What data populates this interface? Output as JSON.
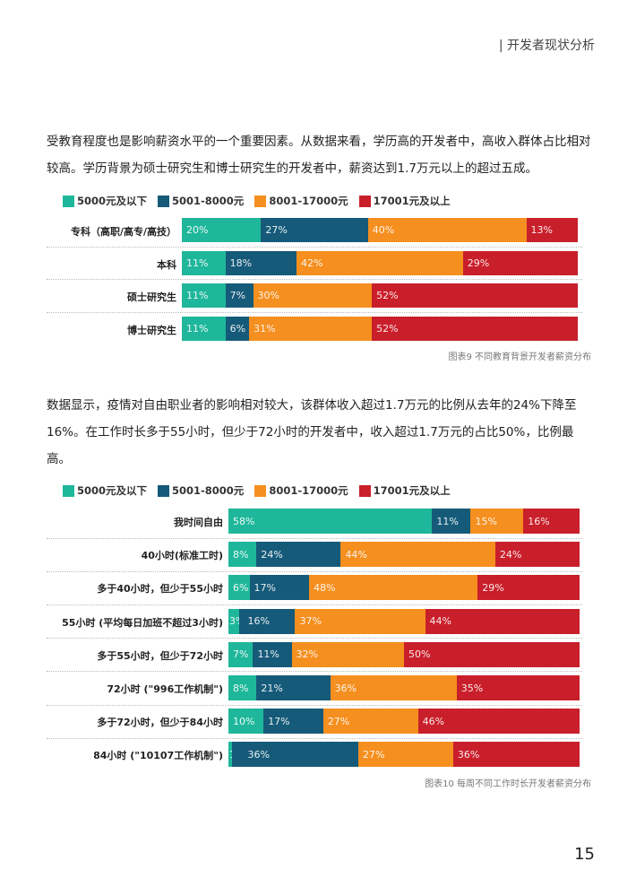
{
  "header": {
    "section": "| 开发者现状分析"
  },
  "paragraph1": "受教育程度也是影响薪资水平的一个重要因素。从数据来看，学历高的开发者中，高收入群体占比相对较高。学历背景为硕士研究生和博士研究生的开发者中，薪资达到1.7万元以上的超过五成。",
  "paragraph2": "数据显示，疫情对自由职业者的影响相对较大，该群体收入超过1.7万元的比例从去年的24%下降至16%。在工作时长多于55小时，但少于72小时的开发者中，收入超过1.7万元的占比50%，比例最高。",
  "page_number": "15",
  "chart_data": [
    {
      "type": "bar",
      "stacked": true,
      "orientation": "horizontal",
      "title": "图表9 不同教育背景开发者薪资分布",
      "legend_position": "top-left",
      "series": [
        {
          "name": "5000元及以下",
          "color": "#1fb79b"
        },
        {
          "name": "5001-8000元",
          "color": "#165a79"
        },
        {
          "name": "8001-17000元",
          "color": "#f58f1f"
        },
        {
          "name": "17001元及以上",
          "color": "#c91f2b"
        }
      ],
      "categories": [
        "专科（高职/高专/高技）",
        "本科",
        "硕士研究生",
        "博士研究生"
      ],
      "values": [
        [
          20,
          27,
          40,
          13
        ],
        [
          11,
          18,
          42,
          29
        ],
        [
          11,
          7,
          30,
          52
        ],
        [
          11,
          6,
          31,
          52
        ]
      ]
    },
    {
      "type": "bar",
      "stacked": true,
      "orientation": "horizontal",
      "title": "图表10 每周不同工作时长开发者薪资分布",
      "legend_position": "top-left",
      "series": [
        {
          "name": "5000元及以下",
          "color": "#1fb79b"
        },
        {
          "name": "5001-8000元",
          "color": "#165a79"
        },
        {
          "name": "8001-17000元",
          "color": "#f58f1f"
        },
        {
          "name": "17001元及以上",
          "color": "#c91f2b"
        }
      ],
      "categories": [
        "我时间自由",
        "40小时(标准工时)",
        "多于40小时，但少于55小时",
        "55小时 (平均每日加班不超过3小时)",
        "多于55小时，但少于72小时",
        "72小时 (\"996工作机制\")",
        "多于72小时，但少于84小时",
        "84小时 (\"10107工作机制\")"
      ],
      "values": [
        [
          58,
          11,
          15,
          16
        ],
        [
          8,
          24,
          44,
          24
        ],
        [
          6,
          17,
          48,
          29
        ],
        [
          3,
          16,
          37,
          44
        ],
        [
          7,
          11,
          32,
          50
        ],
        [
          8,
          21,
          36,
          35
        ],
        [
          10,
          17,
          27,
          46
        ],
        [
          1,
          36,
          27,
          36
        ]
      ]
    }
  ]
}
